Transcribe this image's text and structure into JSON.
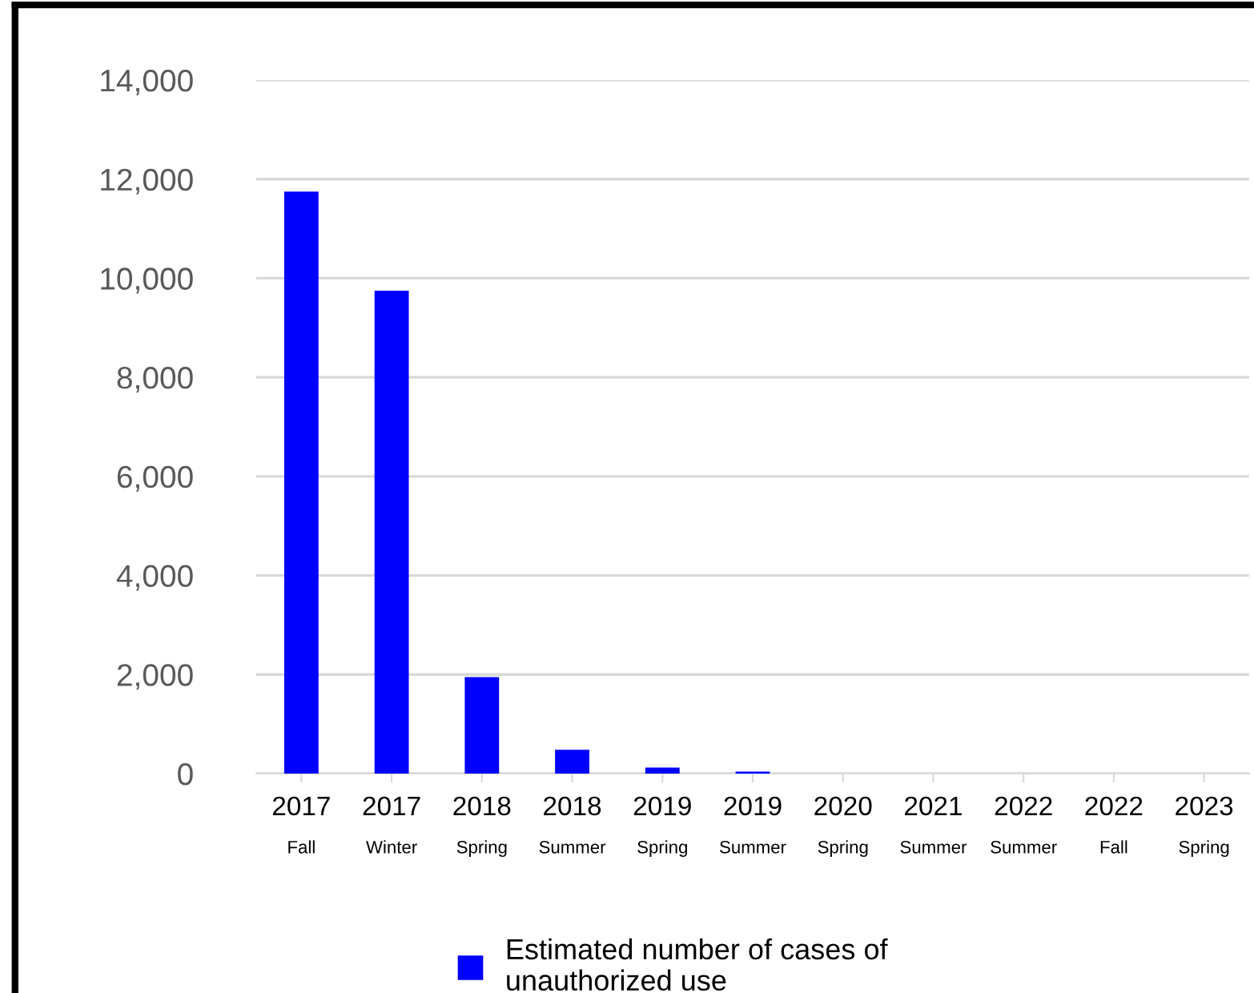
{
  "chart_data": {
    "type": "bar",
    "categories": [
      "2017\nFall",
      "2017\nWinter",
      "2018\nSpring",
      "2018\nSummer",
      "2019\nSpring",
      "2019\nSummer",
      "2020\nSpring",
      "2021\nSummer",
      "2022\nSummer",
      "2022\nFall",
      "2023\nSpring"
    ],
    "series": [
      {
        "name": "Estimated number of cases of\nunauthorized use",
        "color": "#0000ff",
        "values": [
          11750,
          9750,
          1950,
          480,
          120,
          40,
          0,
          0,
          0,
          0,
          0
        ]
      }
    ],
    "ylim": [
      0,
      14000
    ],
    "yticks": [
      {
        "value": 0,
        "label": "0"
      },
      {
        "value": 2000,
        "label": "2,000"
      },
      {
        "value": 4000,
        "label": "4,000"
      },
      {
        "value": 6000,
        "label": "6,000"
      },
      {
        "value": 8000,
        "label": "8,000"
      },
      {
        "value": 10000,
        "label": "10,000"
      },
      {
        "value": 12000,
        "label": "12,000"
      },
      {
        "value": 14000,
        "label": "14,000"
      }
    ],
    "grid": "y",
    "legend": "bottom"
  }
}
